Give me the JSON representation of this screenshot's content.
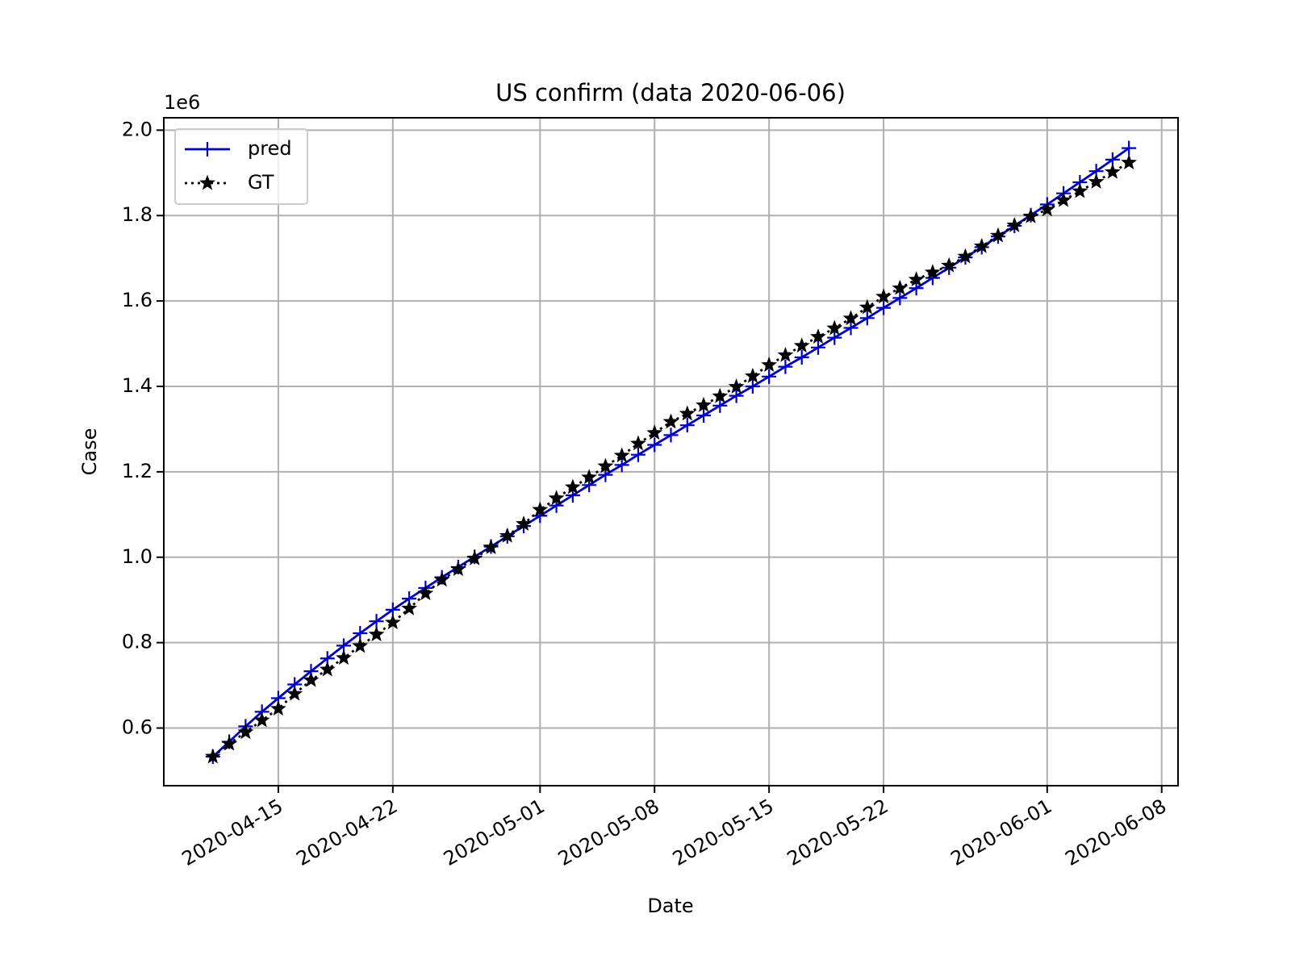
{
  "chart_data": {
    "type": "line",
    "title": "US confirm (data 2020-06-06)",
    "xlabel": "Date",
    "ylabel": "Case",
    "y_offset_label": "1e6",
    "x": [
      "2020-04-11",
      "2020-04-12",
      "2020-04-13",
      "2020-04-14",
      "2020-04-15",
      "2020-04-16",
      "2020-04-17",
      "2020-04-18",
      "2020-04-19",
      "2020-04-20",
      "2020-04-21",
      "2020-04-22",
      "2020-04-23",
      "2020-04-24",
      "2020-04-25",
      "2020-04-26",
      "2020-04-27",
      "2020-04-28",
      "2020-04-29",
      "2020-04-30",
      "2020-05-01",
      "2020-05-02",
      "2020-05-03",
      "2020-05-04",
      "2020-05-05",
      "2020-05-06",
      "2020-05-07",
      "2020-05-08",
      "2020-05-09",
      "2020-05-10",
      "2020-05-11",
      "2020-05-12",
      "2020-05-13",
      "2020-05-14",
      "2020-05-15",
      "2020-05-16",
      "2020-05-17",
      "2020-05-18",
      "2020-05-19",
      "2020-05-20",
      "2020-05-21",
      "2020-05-22",
      "2020-05-23",
      "2020-05-24",
      "2020-05-25",
      "2020-05-26",
      "2020-05-27",
      "2020-05-28",
      "2020-05-29",
      "2020-05-30",
      "2020-05-31",
      "2020-06-01",
      "2020-06-02",
      "2020-06-03",
      "2020-06-04",
      "2020-06-05",
      "2020-06-06"
    ],
    "series": [
      {
        "name": "pred",
        "color": "#0000cc",
        "marker": "plus",
        "linestyle": "solid",
        "values": [
          533000,
          568000,
          604000,
          638000,
          670000,
          702000,
          733000,
          763000,
          793000,
          822000,
          850000,
          877000,
          903000,
          928000,
          953000,
          977000,
          1001000,
          1025000,
          1049000,
          1073000,
          1097000,
          1121000,
          1145000,
          1169000,
          1193000,
          1216000,
          1240000,
          1263000,
          1286000,
          1309000,
          1332000,
          1355000,
          1378000,
          1400000,
          1423000,
          1446000,
          1468000,
          1491000,
          1514000,
          1537000,
          1560000,
          1584000,
          1607000,
          1630000,
          1654000,
          1678000,
          1702000,
          1726000,
          1751000,
          1776000,
          1801000,
          1826000,
          1852000,
          1878000,
          1904000,
          1931000,
          1958000
        ]
      },
      {
        "name": "GT",
        "color": "#000000",
        "marker": "star",
        "linestyle": "dotted",
        "values": [
          533000,
          563000,
          590000,
          618000,
          645000,
          680000,
          712000,
          737000,
          764000,
          792000,
          819000,
          847000,
          880000,
          915000,
          947000,
          972000,
          997000,
          1023000,
          1050000,
          1078000,
          1111000,
          1138000,
          1164000,
          1187000,
          1213000,
          1238000,
          1266000,
          1291000,
          1317000,
          1336000,
          1356000,
          1377000,
          1399000,
          1424000,
          1450000,
          1473000,
          1495000,
          1516000,
          1536000,
          1559000,
          1585000,
          1610000,
          1630000,
          1650000,
          1667000,
          1683000,
          1704000,
          1728000,
          1753000,
          1777000,
          1798000,
          1814000,
          1836000,
          1857000,
          1879000,
          1902000,
          1924000
        ]
      }
    ],
    "xlim": [
      "2020-04-08",
      "2020-06-09"
    ],
    "xticks": [
      "2020-04-15",
      "2020-04-22",
      "2020-05-01",
      "2020-05-08",
      "2020-05-15",
      "2020-05-22",
      "2020-06-01",
      "2020-06-08"
    ],
    "ylim": [
      465000,
      2029000
    ],
    "yticks": [
      {
        "value": 600000,
        "label": "0.6"
      },
      {
        "value": 800000,
        "label": "0.8"
      },
      {
        "value": 1000000,
        "label": "1.0"
      },
      {
        "value": 1200000,
        "label": "1.2"
      },
      {
        "value": 1400000,
        "label": "1.4"
      },
      {
        "value": 1600000,
        "label": "1.6"
      },
      {
        "value": 1800000,
        "label": "1.8"
      },
      {
        "value": 2000000,
        "label": "2.0"
      }
    ],
    "grid": true,
    "legend": "upper left"
  }
}
